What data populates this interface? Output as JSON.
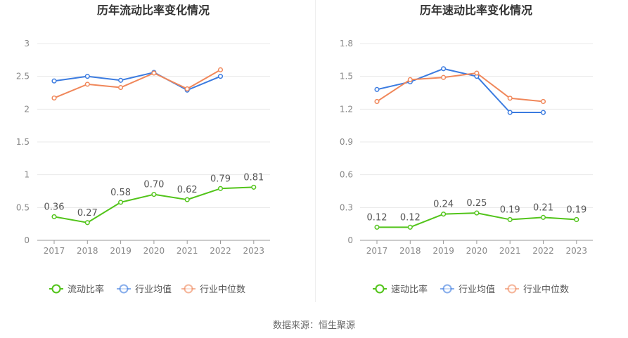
{
  "charts": [
    {
      "id": "left",
      "chart_data": {
        "type": "line",
        "title": "历年流动比率变化情况",
        "categories": [
          "2017",
          "2018",
          "2019",
          "2020",
          "2021",
          "2022",
          "2023"
        ],
        "ylim": [
          0,
          3
        ],
        "yticks": [
          "0",
          "0.5",
          "1",
          "1.5",
          "2",
          "2.5",
          "3"
        ],
        "ytick_values": [
          0,
          0.5,
          1,
          1.5,
          2,
          2.5,
          3
        ],
        "grid": true,
        "legend_position": "bottom",
        "series": [
          {
            "name": "流动比率",
            "color": "#52c41a",
            "values": [
              0.36,
              0.27,
              0.58,
              0.7,
              0.62,
              0.79,
              0.81
            ],
            "labels": [
              "0.36",
              "0.27",
              "0.58",
              "0.70",
              "0.62",
              "0.79",
              "0.81"
            ]
          },
          {
            "name": "行业均值",
            "color": "#3b7be0",
            "values": [
              2.43,
              2.5,
              2.44,
              2.56,
              2.29,
              2.5,
              null
            ]
          },
          {
            "name": "行业中位数",
            "color": "#f0875a",
            "values": [
              2.17,
              2.38,
              2.33,
              2.55,
              2.31,
              2.6,
              null
            ]
          }
        ]
      }
    },
    {
      "id": "right",
      "chart_data": {
        "type": "line",
        "title": "历年速动比率变化情况",
        "categories": [
          "2017",
          "2018",
          "2019",
          "2020",
          "2021",
          "2022",
          "2023"
        ],
        "ylim": [
          0,
          1.8
        ],
        "yticks": [
          "0",
          "0.3",
          "0.6",
          "0.9",
          "1.2",
          "1.5",
          "1.8"
        ],
        "ytick_values": [
          0,
          0.3,
          0.6,
          0.9,
          1.2,
          1.5,
          1.8
        ],
        "grid": true,
        "legend_position": "bottom",
        "series": [
          {
            "name": "速动比率",
            "color": "#52c41a",
            "values": [
              0.12,
              0.12,
              0.24,
              0.25,
              0.19,
              0.21,
              0.19
            ],
            "labels": [
              "0.12",
              "0.12",
              "0.24",
              "0.25",
              "0.19",
              "0.21",
              "0.19"
            ]
          },
          {
            "name": "行业均值",
            "color": "#3b7be0",
            "values": [
              1.38,
              1.45,
              1.57,
              1.5,
              1.17,
              1.17,
              null
            ]
          },
          {
            "name": "行业中位数",
            "color": "#f0875a",
            "values": [
              1.27,
              1.47,
              1.49,
              1.53,
              1.3,
              1.27,
              null
            ]
          }
        ]
      }
    }
  ],
  "source_text": "数据来源：恒生聚源"
}
